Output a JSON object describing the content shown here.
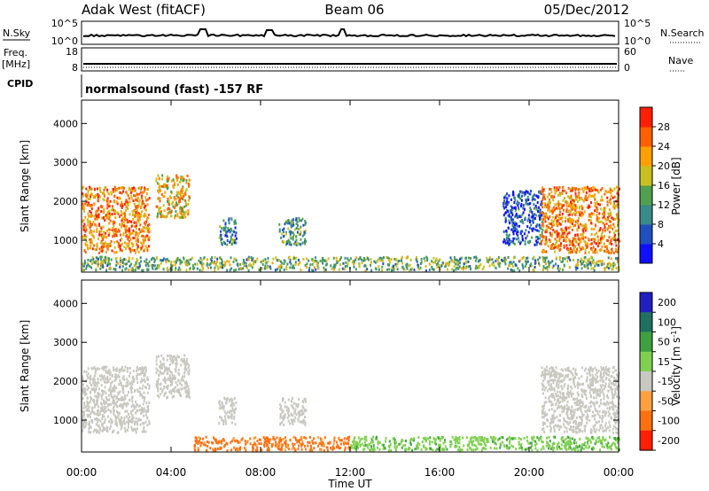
{
  "header": {
    "station": "Adak West (fitACF)",
    "beam": "Beam 06",
    "date": "05/Dec/2012"
  },
  "params": {
    "nsky_label": "N.Sky",
    "nsky_top": "10^5",
    "nsky_bottom": "10^0",
    "nsearch_label": "N.Search",
    "nsearch_top": "10^5",
    "nsearch_bottom": "10^0",
    "freq_label_1": "Freq.",
    "freq_label_2": "[MHz]",
    "freq_top": "18",
    "freq_bottom": "8",
    "nave_label": "Nave",
    "nave_top": "60",
    "nave_bottom": "0",
    "cpid_label": "CPID",
    "cpid_text": "normalsound (fast) -157 RF"
  },
  "chart_data": [
    {
      "type": "heatmap",
      "name": "power",
      "xlabel": "",
      "ylabel": "Slant Range [km]",
      "x_range_hours": [
        0,
        24
      ],
      "y_range_km": [
        180,
        4600
      ],
      "yticks": [
        "1000",
        "2000",
        "3000",
        "4000"
      ],
      "yticks_values": [
        1000,
        2000,
        3000,
        4000
      ],
      "colorbar_label": "Power [dB]",
      "colorbar_ticks": [
        "4",
        "8",
        "12",
        "16",
        "20",
        "24",
        "28"
      ],
      "colorbar_tick_values": [
        4,
        8,
        12,
        16,
        20,
        24,
        28
      ],
      "colorbar_range": [
        0,
        32
      ],
      "colorscale": [
        "#1010ff",
        "#2050c0",
        "#3a8a8a",
        "#50a050",
        "#c8c020",
        "#ffa000",
        "#ff6000",
        "#ff2000"
      ],
      "features": [
        {
          "t": [
            0.0,
            3.0
          ],
          "r": [
            700,
            2400
          ],
          "value": 24
        },
        {
          "t": [
            3.3,
            4.8
          ],
          "r": [
            1600,
            2700
          ],
          "value": 20
        },
        {
          "t": [
            6.1,
            6.9
          ],
          "r": [
            900,
            1600
          ],
          "value": 10
        },
        {
          "t": [
            8.8,
            10.0
          ],
          "r": [
            900,
            1600
          ],
          "value": 12
        },
        {
          "t": [
            0.0,
            24.0
          ],
          "r": [
            250,
            600
          ],
          "value": 14
        },
        {
          "t": [
            18.8,
            20.6
          ],
          "r": [
            900,
            2300
          ],
          "value": 6
        },
        {
          "t": [
            20.5,
            24.0
          ],
          "r": [
            700,
            2400
          ],
          "value": 24
        }
      ]
    },
    {
      "type": "heatmap",
      "name": "velocity",
      "xlabel": "Time UT",
      "ylabel": "Slant Range [km]",
      "x_range_hours": [
        0,
        24
      ],
      "y_range_km": [
        180,
        4600
      ],
      "xticks": [
        "00:00",
        "04:00",
        "08:00",
        "12:00",
        "16:00",
        "20:00",
        "00:00"
      ],
      "xticks_values": [
        0,
        4,
        8,
        12,
        16,
        20,
        24
      ],
      "yticks": [
        "1000",
        "2000",
        "3000",
        "4000"
      ],
      "yticks_values": [
        1000,
        2000,
        3000,
        4000
      ],
      "colorbar_label": "Velocity [m s^-1]",
      "colorbar_ticks": [
        "200",
        "100",
        "50",
        "15",
        "-15",
        "-50",
        "-100",
        "-200"
      ],
      "colorbar_tick_values": [
        200,
        100,
        50,
        15,
        -15,
        -50,
        -100,
        -200
      ],
      "colorscale": [
        "#2020c0",
        "#207060",
        "#40a040",
        "#80d050",
        "#c8c8c0",
        "#ffa040",
        "#ff7010",
        "#ff2000"
      ],
      "features": [
        {
          "t": [
            0.0,
            3.0
          ],
          "r": [
            700,
            2400
          ],
          "value": 0
        },
        {
          "t": [
            3.3,
            4.8
          ],
          "r": [
            1600,
            2700
          ],
          "value": 0
        },
        {
          "t": [
            6.1,
            6.9
          ],
          "r": [
            900,
            1600
          ],
          "value": 0
        },
        {
          "t": [
            8.8,
            10.0
          ],
          "r": [
            900,
            1600
          ],
          "value": 0
        },
        {
          "t": [
            5.0,
            12.0
          ],
          "r": [
            250,
            600
          ],
          "value": -60
        },
        {
          "t": [
            12.0,
            24.0
          ],
          "r": [
            250,
            600
          ],
          "value": 40
        },
        {
          "t": [
            20.5,
            24.0
          ],
          "r": [
            700,
            2400
          ],
          "value": 0
        }
      ]
    }
  ]
}
